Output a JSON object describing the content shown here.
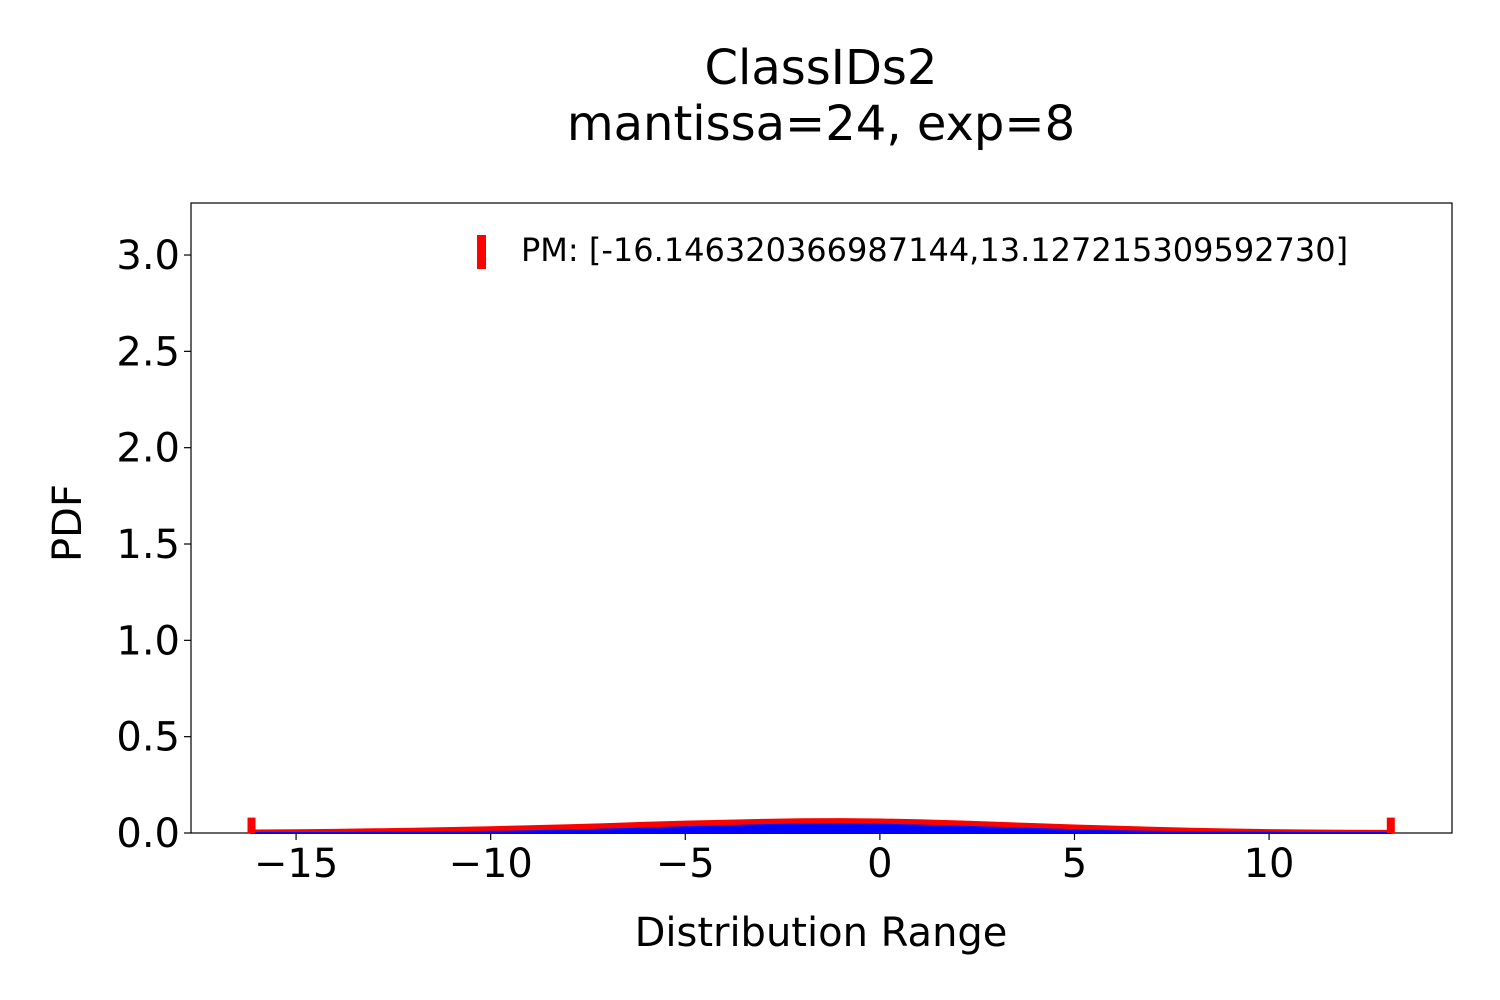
{
  "chart_data": {
    "type": "area",
    "title": "ClassIDs2",
    "subtitle": "mantissa=24, exp=8",
    "xlabel": "Distribution Range",
    "ylabel": "PDF",
    "xlim": [
      -17.7,
      14.7
    ],
    "ylim": [
      0,
      3.27
    ],
    "x_ticks": [
      -15,
      -10,
      -5,
      0,
      5,
      10
    ],
    "x_tick_labels": [
      "−15",
      "−10",
      "−5",
      "0",
      "5",
      "10"
    ],
    "y_ticks": [
      0.0,
      0.5,
      1.0,
      1.5,
      2.0,
      2.5,
      3.0
    ],
    "y_tick_labels": [
      "0.0",
      "0.5",
      "1.0",
      "1.5",
      "2.0",
      "2.5",
      "3.0"
    ],
    "grid": false,
    "legend": {
      "position": "top-right",
      "entries": [
        "PM: [-16.146320366987144,13.127215309592730]"
      ]
    },
    "series": [
      {
        "name": "PM: [-16.146320366987144,13.127215309592730]",
        "color": "#ff0000",
        "x": [
          -16.146,
          -15,
          -14,
          -13,
          -12,
          -11,
          -10,
          -9,
          -8,
          -7,
          -6,
          -5,
          -4,
          -3,
          -2,
          -1,
          0,
          1,
          2,
          3,
          4,
          5,
          6,
          7,
          8,
          9,
          10,
          11,
          12,
          13.127
        ],
        "values": [
          0.013,
          0.014,
          0.016,
          0.019,
          0.022,
          0.026,
          0.03,
          0.035,
          0.04,
          0.046,
          0.053,
          0.059,
          0.064,
          0.068,
          0.071,
          0.072,
          0.07,
          0.066,
          0.06,
          0.053,
          0.046,
          0.039,
          0.033,
          0.027,
          0.022,
          0.018,
          0.015,
          0.013,
          0.012,
          0.011
        ]
      },
      {
        "color": "#0000ff",
        "x": [
          -16.146,
          -15,
          -14,
          -13,
          -12,
          -11,
          -10,
          -9,
          -8,
          -7,
          -6,
          -5,
          -4,
          -3,
          -2,
          -1,
          0,
          1,
          2,
          3,
          4,
          5,
          6,
          7,
          8,
          9,
          10,
          11,
          12,
          13.127
        ],
        "values": [
          0.0,
          0.0,
          0.0,
          0.001,
          0.002,
          0.004,
          0.006,
          0.009,
          0.013,
          0.018,
          0.024,
          0.03,
          0.036,
          0.041,
          0.044,
          0.045,
          0.043,
          0.039,
          0.033,
          0.027,
          0.021,
          0.015,
          0.01,
          0.006,
          0.004,
          0.002,
          0.001,
          0.0,
          0.0,
          0.0
        ]
      }
    ],
    "bounds": [
      -16.146320366987144,
      13.12721530959273
    ]
  }
}
